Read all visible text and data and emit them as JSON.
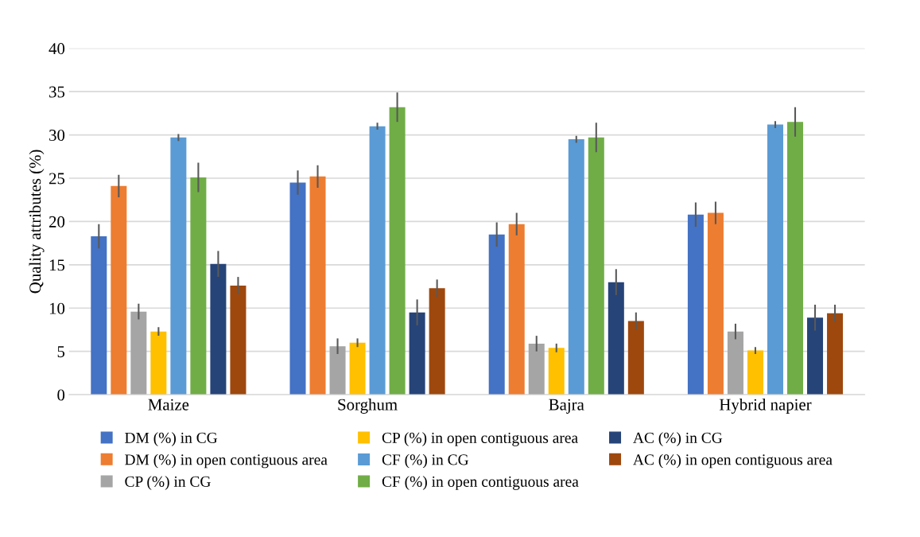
{
  "chart_data": {
    "type": "bar",
    "ylabel": "Quality attributes (%)",
    "categories": [
      "Maize",
      "Sorghum",
      "Bajra",
      "Hybrid napier"
    ],
    "ylim": [
      0,
      40
    ],
    "yticks": [
      0,
      5,
      10,
      15,
      20,
      25,
      30,
      35,
      40
    ],
    "grid": "y",
    "legend": "bottom",
    "series": [
      {
        "name": "DM (%) in CG",
        "color": "#4472c4",
        "values": [
          18.3,
          24.5,
          18.5,
          20.8
        ],
        "errors": [
          1.4,
          1.4,
          1.4,
          1.4
        ]
      },
      {
        "name": "DM (%) in open contiguous area",
        "color": "#ed7d31",
        "values": [
          24.1,
          25.2,
          19.7,
          21.0
        ],
        "errors": [
          1.3,
          1.3,
          1.3,
          1.3
        ]
      },
      {
        "name": "CP (%) in CG",
        "color": "#a5a5a5",
        "values": [
          9.6,
          5.6,
          5.9,
          7.3
        ],
        "errors": [
          0.9,
          0.9,
          0.9,
          0.9
        ]
      },
      {
        "name": "CP (%) in open contiguous area",
        "color": "#ffc000",
        "values": [
          7.3,
          6.0,
          5.4,
          5.1
        ],
        "errors": [
          0.5,
          0.5,
          0.5,
          0.4
        ]
      },
      {
        "name": "CF (%) in CG",
        "color": "#5b9bd5",
        "values": [
          29.7,
          31.0,
          29.5,
          31.2
        ],
        "errors": [
          0.4,
          0.4,
          0.4,
          0.4
        ]
      },
      {
        "name": "CF (%) in open contiguous area",
        "color": "#70ad47",
        "values": [
          25.1,
          33.2,
          29.7,
          31.5
        ],
        "errors": [
          1.7,
          1.7,
          1.7,
          1.7
        ]
      },
      {
        "name": "AC (%) in CG",
        "color": "#264478",
        "values": [
          15.1,
          9.5,
          13.0,
          8.9
        ],
        "errors": [
          1.5,
          1.5,
          1.5,
          1.5
        ]
      },
      {
        "name": "AC (%) in open contiguous area",
        "color": "#9e480e",
        "values": [
          12.6,
          12.3,
          8.5,
          9.4
        ],
        "errors": [
          1.0,
          1.0,
          1.0,
          1.0
        ]
      }
    ]
  }
}
